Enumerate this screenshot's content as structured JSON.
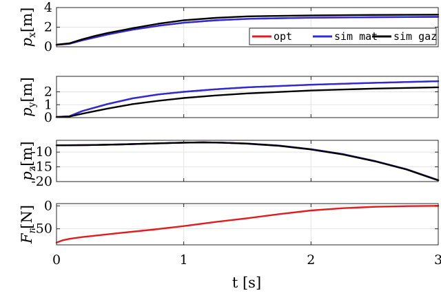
{
  "chart_data": [
    {
      "type": "line",
      "ylabel": "p_x [m]",
      "ylabel_main": "p",
      "ylabel_sub": "x",
      "ylabel_unit": "[m]",
      "xlim": [
        0,
        3
      ],
      "ylim": [
        0,
        4
      ],
      "xticks": [
        0,
        1,
        2,
        3
      ],
      "yticks": [
        0,
        2,
        4
      ],
      "ytick_labels": [
        "0",
        "2",
        "4"
      ],
      "grid": true,
      "legend": {
        "position": "bottom-right",
        "entries": [
          {
            "label": "opt",
            "color": "#e41a1c"
          },
          {
            "label": "sim mat",
            "color": "#2b2bd9"
          },
          {
            "label": "sim gaz",
            "color": "#000000"
          }
        ]
      },
      "x": [
        0,
        0.1,
        0.2,
        0.3,
        0.4,
        0.5,
        0.6,
        0.8,
        1.0,
        1.25,
        1.5,
        2.0,
        2.5,
        3.0
      ],
      "series": [
        {
          "name": "opt",
          "color": "#e41a1c",
          "values": [
            0.2,
            0.3,
            0.65,
            0.95,
            1.25,
            1.5,
            1.75,
            2.15,
            2.45,
            2.7,
            2.85,
            2.97,
            3.02,
            3.05
          ]
        },
        {
          "name": "sim mat",
          "color": "#2b2bd9",
          "values": [
            0.2,
            0.3,
            0.65,
            0.95,
            1.25,
            1.5,
            1.75,
            2.15,
            2.45,
            2.7,
            2.85,
            2.97,
            3.02,
            3.05
          ]
        },
        {
          "name": "sim gaz",
          "color": "#000000",
          "values": [
            0.22,
            0.35,
            0.75,
            1.1,
            1.4,
            1.65,
            1.9,
            2.35,
            2.7,
            2.95,
            3.1,
            3.2,
            3.25,
            3.28
          ]
        }
      ]
    },
    {
      "type": "line",
      "ylabel": "p_y [m]",
      "ylabel_main": "p",
      "ylabel_sub": "y",
      "ylabel_unit": "[m]",
      "xlim": [
        0,
        3
      ],
      "ylim": [
        0,
        3.2
      ],
      "xticks": [
        0,
        1,
        2,
        3
      ],
      "yticks": [
        0,
        1,
        2
      ],
      "ytick_labels": [
        "0",
        "1",
        "2"
      ],
      "grid": true,
      "x": [
        0,
        0.1,
        0.2,
        0.4,
        0.6,
        0.8,
        1.0,
        1.25,
        1.5,
        2.0,
        2.5,
        3.0
      ],
      "series": [
        {
          "name": "opt",
          "color": "#e41a1c",
          "values": [
            0.05,
            0.1,
            0.5,
            1.05,
            1.5,
            1.8,
            2.0,
            2.2,
            2.35,
            2.55,
            2.7,
            2.82
          ]
        },
        {
          "name": "sim mat",
          "color": "#2b2bd9",
          "values": [
            0.05,
            0.1,
            0.5,
            1.05,
            1.5,
            1.8,
            2.0,
            2.2,
            2.35,
            2.55,
            2.7,
            2.82
          ]
        },
        {
          "name": "sim gaz",
          "color": "#000000",
          "values": [
            0.05,
            0.08,
            0.3,
            0.7,
            1.05,
            1.3,
            1.52,
            1.72,
            1.88,
            2.1,
            2.25,
            2.35
          ]
        }
      ]
    },
    {
      "type": "line",
      "ylabel": "p_z [m]",
      "ylabel_main": "p",
      "ylabel_sub": "z",
      "ylabel_unit": "[m]",
      "xlim": [
        0,
        3
      ],
      "ylim": [
        -20,
        -6
      ],
      "xticks": [
        0,
        1,
        2,
        3
      ],
      "yticks": [
        -10,
        -15,
        -20
      ],
      "ytick_labels": [
        "-10",
        "-15",
        "-20"
      ],
      "grid": true,
      "x": [
        0,
        0.25,
        0.5,
        0.75,
        1.0,
        1.15,
        1.3,
        1.5,
        1.75,
        2.0,
        2.25,
        2.5,
        2.75,
        3.0
      ],
      "series": [
        {
          "name": "opt",
          "color": "#e41a1c",
          "values": [
            -7.7,
            -7.6,
            -7.4,
            -7.1,
            -6.8,
            -6.7,
            -6.8,
            -7.1,
            -7.8,
            -9.0,
            -10.7,
            -13.0,
            -15.8,
            -19.5
          ]
        },
        {
          "name": "sim mat",
          "color": "#2b2bd9",
          "values": [
            -7.7,
            -7.6,
            -7.4,
            -7.1,
            -6.8,
            -6.7,
            -6.8,
            -7.1,
            -7.8,
            -9.0,
            -10.7,
            -13.0,
            -15.8,
            -19.5
          ]
        },
        {
          "name": "sim gaz",
          "color": "#000000",
          "values": [
            -7.7,
            -7.6,
            -7.4,
            -7.1,
            -6.8,
            -6.7,
            -6.8,
            -7.15,
            -7.9,
            -9.1,
            -10.8,
            -13.1,
            -15.9,
            -19.6
          ]
        }
      ]
    },
    {
      "type": "line",
      "ylabel": "F_r [N]",
      "ylabel_main": "F",
      "ylabel_sub": "r",
      "ylabel_unit": "[N]",
      "xlabel": "t [s]",
      "xlim": [
        0,
        3
      ],
      "ylim": [
        -85,
        5
      ],
      "xticks": [
        0,
        1,
        2,
        3
      ],
      "xtick_labels": [
        "0",
        "1",
        "2",
        "3"
      ],
      "yticks": [
        0,
        -50
      ],
      "ytick_labels": [
        "0",
        "-50"
      ],
      "grid": true,
      "x": [
        0,
        0.05,
        0.1,
        0.2,
        0.3,
        0.5,
        0.75,
        1.0,
        1.25,
        1.5,
        1.75,
        2.0,
        2.25,
        2.5,
        2.75,
        3.0
      ],
      "series": [
        {
          "name": "opt",
          "color": "#e41a1c",
          "values": [
            -80,
            -75,
            -72,
            -68,
            -65,
            -59,
            -52,
            -44,
            -35,
            -27,
            -18,
            -10,
            -5,
            -2,
            -0.5,
            0
          ]
        }
      ]
    }
  ]
}
